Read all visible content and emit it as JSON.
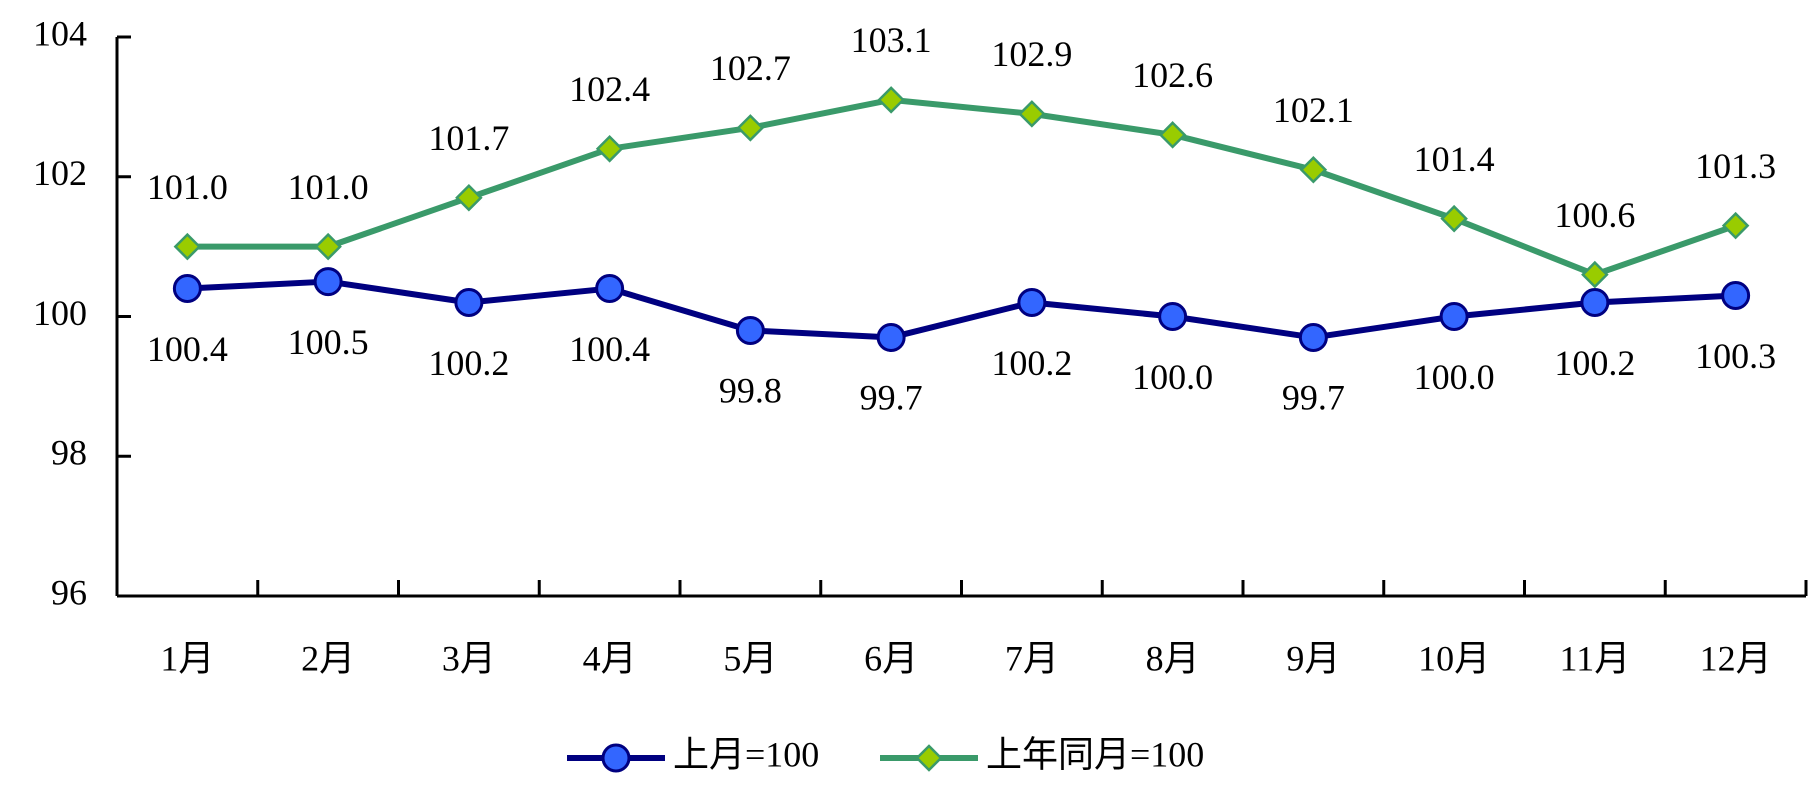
{
  "chart_data": {
    "type": "line",
    "categories": [
      "1月",
      "2月",
      "3月",
      "4月",
      "5月",
      "6月",
      "7月",
      "8月",
      "9月",
      "10月",
      "11月",
      "12月"
    ],
    "series": [
      {
        "name": "上月=100",
        "color": "#000080",
        "marker_color": "#3366ff",
        "marker": "circle",
        "values": [
          100.4,
          100.5,
          100.2,
          100.4,
          99.8,
          99.7,
          100.2,
          100.0,
          99.7,
          100.0,
          100.2,
          100.3
        ],
        "value_labels": [
          "100.4",
          "100.5",
          "100.2",
          "100.4",
          "99.8",
          "99.7",
          "100.2",
          "100.0",
          "99.7",
          "100.0",
          "100.2",
          "100.3"
        ]
      },
      {
        "name": "上年同月=100",
        "color": "#3a9a6a",
        "marker_color": "#99cc00",
        "marker": "diamond",
        "values": [
          101.0,
          101.0,
          101.7,
          102.4,
          102.7,
          103.1,
          102.9,
          102.6,
          102.1,
          101.4,
          100.6,
          101.3
        ],
        "value_labels": [
          "101.0",
          "101.0",
          "101.7",
          "102.4",
          "102.7",
          "103.1",
          "102.9",
          "102.6",
          "102.1",
          "101.4",
          "100.6",
          "101.3"
        ]
      }
    ],
    "ylim": [
      96,
      104
    ],
    "yticks": [
      96,
      98,
      100,
      102,
      104
    ],
    "grid": false,
    "legend": "bottom"
  }
}
